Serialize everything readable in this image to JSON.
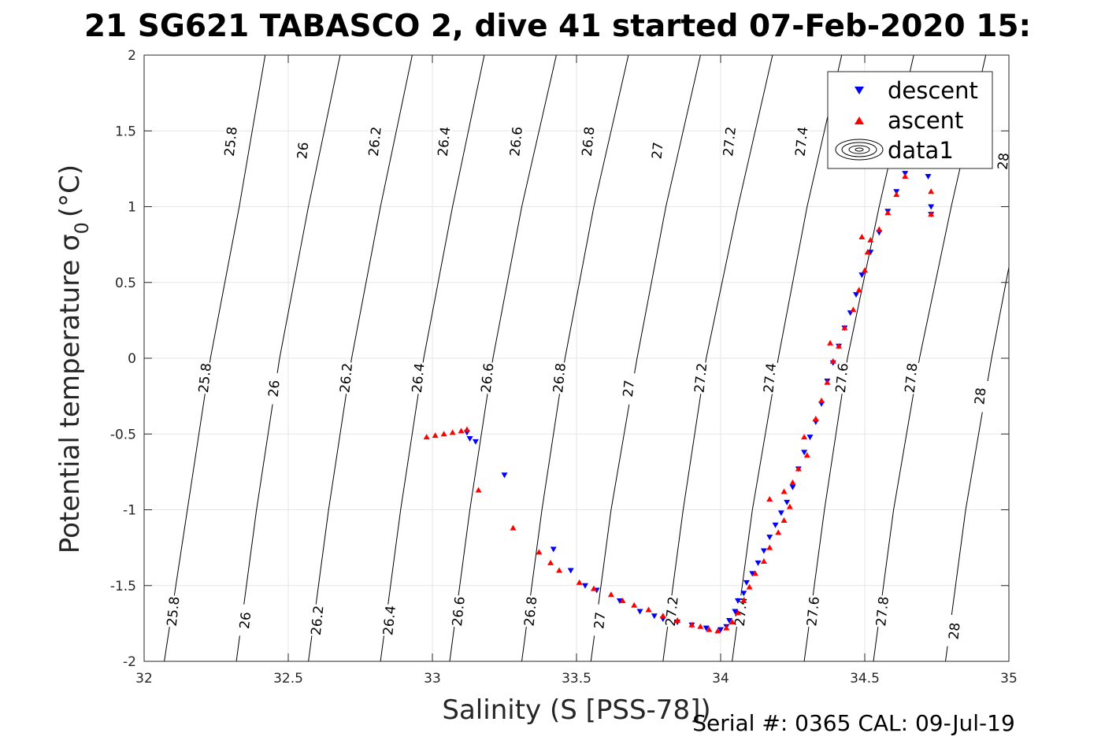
{
  "chart_data": {
    "type": "scatter",
    "title": "21 SG621 TABASCO 2, dive 41 started 07-Feb-2020 15:",
    "xlabel": "Salinity (S [PSS-78])",
    "ylabel_main": "Potential temperature σ",
    "ylabel_sub": "0",
    "ylabel_unit": "(°C)",
    "footer": "Serial #: 0365  CAL: 09-Jul-19",
    "xlim": [
      32,
      35
    ],
    "ylim": [
      -2,
      2
    ],
    "x_ticks": [
      32,
      32.5,
      33,
      33.5,
      34,
      34.5,
      35
    ],
    "y_ticks": [
      -2,
      -1.5,
      -1,
      -0.5,
      0,
      0.5,
      1,
      1.5,
      2
    ],
    "x_tick_labels": [
      "32",
      "32.5",
      "33",
      "33.5",
      "34",
      "34.5",
      "35"
    ],
    "y_tick_labels": [
      "-2",
      "-1.5",
      "-1",
      "-0.5",
      "0",
      "0.5",
      "1",
      "1.5",
      "2"
    ],
    "grid": true,
    "legend_position": "top-right",
    "legend": [
      {
        "label": "descent",
        "marker": "triangle-down",
        "color": "#0000ff"
      },
      {
        "label": "ascent",
        "marker": "triangle-up",
        "color": "#ff0000"
      },
      {
        "label": "data1",
        "marker": "contour",
        "color": "#000000"
      }
    ],
    "density_contours": [
      {
        "level": "25.8",
        "points": [
          [
            32.07,
            -2
          ],
          [
            32.15,
            -1
          ],
          [
            32.23,
            0
          ],
          [
            32.33,
            1
          ],
          [
            32.42,
            2
          ]
        ]
      },
      {
        "level": "26",
        "points": [
          [
            32.32,
            -2
          ],
          [
            32.39,
            -1
          ],
          [
            32.47,
            0
          ],
          [
            32.57,
            1
          ],
          [
            32.68,
            2
          ]
        ]
      },
      {
        "level": "26.2",
        "points": [
          [
            32.57,
            -2
          ],
          [
            32.64,
            -1
          ],
          [
            32.72,
            0
          ],
          [
            32.82,
            1
          ],
          [
            32.93,
            2
          ]
        ]
      },
      {
        "level": "26.4",
        "points": [
          [
            32.82,
            -2
          ],
          [
            32.89,
            -1
          ],
          [
            32.97,
            0
          ],
          [
            33.07,
            1
          ],
          [
            33.18,
            2
          ]
        ]
      },
      {
        "level": "26.6",
        "points": [
          [
            33.06,
            -2
          ],
          [
            33.13,
            -1
          ],
          [
            33.21,
            0
          ],
          [
            33.31,
            1
          ],
          [
            33.43,
            2
          ]
        ]
      },
      {
        "level": "26.8",
        "points": [
          [
            33.31,
            -2
          ],
          [
            33.38,
            -1
          ],
          [
            33.46,
            0
          ],
          [
            33.56,
            1
          ],
          [
            33.68,
            2
          ]
        ]
      },
      {
        "level": "27",
        "points": [
          [
            33.55,
            -2
          ],
          [
            33.62,
            -1
          ],
          [
            33.71,
            0
          ],
          [
            33.81,
            1
          ],
          [
            33.93,
            2
          ]
        ]
      },
      {
        "level": "27.2",
        "points": [
          [
            33.8,
            -2
          ],
          [
            33.87,
            -1
          ],
          [
            33.95,
            0
          ],
          [
            34.06,
            1
          ],
          [
            34.18,
            2
          ]
        ]
      },
      {
        "level": "27.4",
        "points": [
          [
            34.04,
            -2
          ],
          [
            34.11,
            -1
          ],
          [
            34.2,
            0
          ],
          [
            34.3,
            1
          ],
          [
            34.42,
            2
          ]
        ]
      },
      {
        "level": "27.6",
        "points": [
          [
            34.29,
            -2
          ],
          [
            34.36,
            -1
          ],
          [
            34.44,
            0
          ],
          [
            34.55,
            1
          ],
          [
            34.67,
            2
          ]
        ]
      },
      {
        "level": "27.8",
        "points": [
          [
            34.53,
            -2
          ],
          [
            34.6,
            -1
          ],
          [
            34.69,
            0
          ],
          [
            34.8,
            1
          ],
          [
            34.92,
            2
          ]
        ]
      },
      {
        "level": "28",
        "points": [
          [
            34.78,
            -2
          ],
          [
            34.85,
            -1
          ],
          [
            34.94,
            0
          ],
          [
            35.04,
            1
          ],
          [
            35.17,
            2
          ]
        ]
      }
    ],
    "contour_labels": [
      {
        "text": "25.8",
        "x": 32.1,
        "y": -1.67
      },
      {
        "text": "26",
        "x": 32.35,
        "y": -1.73
      },
      {
        "text": "26.2",
        "x": 32.6,
        "y": -1.73
      },
      {
        "text": "26.4",
        "x": 32.85,
        "y": -1.73
      },
      {
        "text": "26.6",
        "x": 33.09,
        "y": -1.67
      },
      {
        "text": "26.8",
        "x": 33.34,
        "y": -1.67
      },
      {
        "text": "27",
        "x": 33.58,
        "y": -1.73
      },
      {
        "text": "27.2",
        "x": 33.83,
        "y": -1.67
      },
      {
        "text": "27.4",
        "x": 34.07,
        "y": -1.67
      },
      {
        "text": "27.6",
        "x": 34.32,
        "y": -1.67
      },
      {
        "text": "27.8",
        "x": 34.56,
        "y": -1.67
      },
      {
        "text": "28",
        "x": 34.81,
        "y": -1.8
      },
      {
        "text": "25.8",
        "x": 32.21,
        "y": -0.13
      },
      {
        "text": "26",
        "x": 32.45,
        "y": -0.2
      },
      {
        "text": "26.2",
        "x": 32.7,
        "y": -0.13
      },
      {
        "text": "26.4",
        "x": 32.95,
        "y": -0.13
      },
      {
        "text": "26.6",
        "x": 33.19,
        "y": -0.13
      },
      {
        "text": "26.8",
        "x": 33.44,
        "y": -0.13
      },
      {
        "text": "27",
        "x": 33.68,
        "y": -0.2
      },
      {
        "text": "27.2",
        "x": 33.93,
        "y": -0.13
      },
      {
        "text": "27.4",
        "x": 34.17,
        "y": -0.13
      },
      {
        "text": "27.6",
        "x": 34.42,
        "y": -0.13
      },
      {
        "text": "27.8",
        "x": 34.66,
        "y": -0.13
      },
      {
        "text": "28",
        "x": 34.9,
        "y": -0.25
      },
      {
        "text": "25.8",
        "x": 32.3,
        "y": 1.43
      },
      {
        "text": "26",
        "x": 32.55,
        "y": 1.37
      },
      {
        "text": "26.2",
        "x": 32.8,
        "y": 1.43
      },
      {
        "text": "26.4",
        "x": 33.04,
        "y": 1.43
      },
      {
        "text": "26.6",
        "x": 33.29,
        "y": 1.43
      },
      {
        "text": "26.8",
        "x": 33.54,
        "y": 1.43
      },
      {
        "text": "27",
        "x": 33.78,
        "y": 1.37
      },
      {
        "text": "27.2",
        "x": 34.03,
        "y": 1.43
      },
      {
        "text": "27.4",
        "x": 34.28,
        "y": 1.43
      },
      {
        "text": "28",
        "x": 34.98,
        "y": 1.3
      }
    ],
    "series": [
      {
        "name": "descent",
        "color": "#0000ff",
        "marker": "triangle-down",
        "points": [
          [
            33.12,
            -0.49
          ],
          [
            33.13,
            -0.53
          ],
          [
            33.15,
            -0.55
          ],
          [
            33.25,
            -0.77
          ],
          [
            33.42,
            -1.26
          ],
          [
            33.48,
            -1.4
          ],
          [
            33.53,
            -1.5
          ],
          [
            33.57,
            -1.53
          ],
          [
            33.65,
            -1.6
          ],
          [
            33.72,
            -1.67
          ],
          [
            33.77,
            -1.7
          ],
          [
            33.8,
            -1.72
          ],
          [
            33.85,
            -1.74
          ],
          [
            33.9,
            -1.76
          ],
          [
            33.95,
            -1.78
          ],
          [
            34.0,
            -1.79
          ],
          [
            34.02,
            -1.77
          ],
          [
            34.03,
            -1.73
          ],
          [
            34.05,
            -1.67
          ],
          [
            34.06,
            -1.6
          ],
          [
            34.08,
            -1.55
          ],
          [
            34.09,
            -1.48
          ],
          [
            34.11,
            -1.42
          ],
          [
            34.13,
            -1.35
          ],
          [
            34.15,
            -1.27
          ],
          [
            34.17,
            -1.18
          ],
          [
            34.19,
            -1.1
          ],
          [
            34.21,
            -1.02
          ],
          [
            34.23,
            -0.95
          ],
          [
            34.25,
            -0.85
          ],
          [
            34.27,
            -0.73
          ],
          [
            34.29,
            -0.62
          ],
          [
            34.31,
            -0.52
          ],
          [
            34.33,
            -0.42
          ],
          [
            34.35,
            -0.3
          ],
          [
            34.37,
            -0.15
          ],
          [
            34.39,
            -0.03
          ],
          [
            34.41,
            0.08
          ],
          [
            34.43,
            0.2
          ],
          [
            34.45,
            0.3
          ],
          [
            34.47,
            0.42
          ],
          [
            34.49,
            0.55
          ],
          [
            34.52,
            0.7
          ],
          [
            34.55,
            0.83
          ],
          [
            34.58,
            0.97
          ],
          [
            34.61,
            1.1
          ],
          [
            34.64,
            1.22
          ],
          [
            34.67,
            1.31
          ],
          [
            34.7,
            1.39
          ],
          [
            34.72,
            1.2
          ],
          [
            34.73,
            1.0
          ],
          [
            34.73,
            0.95
          ]
        ]
      },
      {
        "name": "ascent",
        "color": "#ff0000",
        "marker": "triangle-up",
        "points": [
          [
            32.98,
            -0.52
          ],
          [
            33.01,
            -0.51
          ],
          [
            33.04,
            -0.5
          ],
          [
            33.07,
            -0.49
          ],
          [
            33.1,
            -0.48
          ],
          [
            33.12,
            -0.47
          ],
          [
            33.16,
            -0.87
          ],
          [
            33.28,
            -1.12
          ],
          [
            33.37,
            -1.28
          ],
          [
            33.41,
            -1.35
          ],
          [
            33.44,
            -1.4
          ],
          [
            33.51,
            -1.48
          ],
          [
            33.56,
            -1.52
          ],
          [
            33.62,
            -1.56
          ],
          [
            33.66,
            -1.6
          ],
          [
            33.7,
            -1.63
          ],
          [
            33.75,
            -1.66
          ],
          [
            33.8,
            -1.7
          ],
          [
            33.85,
            -1.73
          ],
          [
            33.9,
            -1.76
          ],
          [
            33.93,
            -1.77
          ],
          [
            33.96,
            -1.79
          ],
          [
            33.99,
            -1.8
          ],
          [
            34.02,
            -1.78
          ],
          [
            34.04,
            -1.74
          ],
          [
            34.06,
            -1.68
          ],
          [
            34.08,
            -1.6
          ],
          [
            34.1,
            -1.51
          ],
          [
            34.12,
            -1.42
          ],
          [
            34.15,
            -1.34
          ],
          [
            34.17,
            -1.25
          ],
          [
            34.2,
            -1.15
          ],
          [
            34.22,
            -1.07
          ],
          [
            34.24,
            -0.98
          ],
          [
            34.17,
            -0.93
          ],
          [
            34.22,
            -0.88
          ],
          [
            34.25,
            -0.82
          ],
          [
            34.27,
            -0.73
          ],
          [
            34.3,
            -0.64
          ],
          [
            34.29,
            -0.52
          ],
          [
            34.33,
            -0.4
          ],
          [
            34.35,
            -0.28
          ],
          [
            34.37,
            -0.16
          ],
          [
            34.39,
            -0.02
          ],
          [
            34.41,
            0.08
          ],
          [
            34.38,
            0.1
          ],
          [
            34.43,
            0.2
          ],
          [
            34.46,
            0.32
          ],
          [
            34.48,
            0.45
          ],
          [
            34.5,
            0.58
          ],
          [
            34.51,
            0.7
          ],
          [
            34.49,
            0.8
          ],
          [
            34.52,
            0.78
          ],
          [
            34.55,
            0.85
          ],
          [
            34.58,
            0.96
          ],
          [
            34.61,
            1.08
          ],
          [
            34.64,
            1.2
          ],
          [
            34.67,
            1.32
          ],
          [
            34.73,
            1.28
          ],
          [
            34.73,
            1.1
          ],
          [
            34.73,
            0.95
          ]
        ]
      }
    ]
  }
}
